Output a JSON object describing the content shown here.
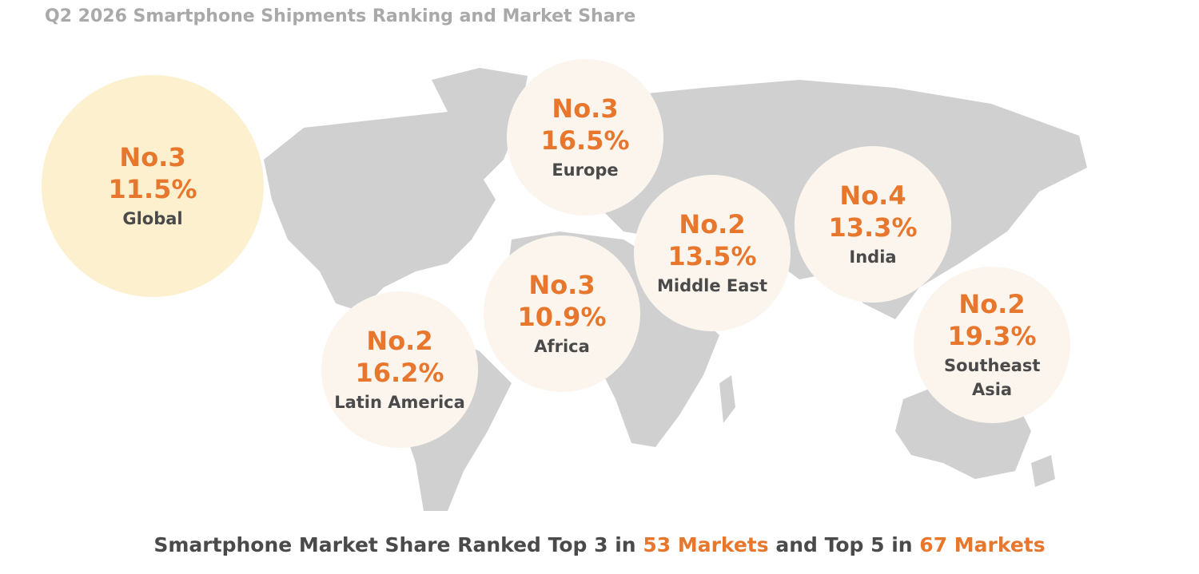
{
  "title": "Q2 2026 Smartphone Shipments Ranking and Market Share",
  "regions": [
    {
      "rank": "No.3",
      "share": "11.5%",
      "name": "Global"
    },
    {
      "rank": "No.3",
      "share": "16.5%",
      "name": "Europe"
    },
    {
      "rank": "No.2",
      "share": "13.5%",
      "name": "Middle East"
    },
    {
      "rank": "No.4",
      "share": "13.3%",
      "name": "India"
    },
    {
      "rank": "No.3",
      "share": "10.9%",
      "name": "Africa"
    },
    {
      "rank": "No.2",
      "share": "16.2%",
      "name": "Latin America"
    },
    {
      "rank": "No.2",
      "share": "19.3%",
      "name": "Southeast Asia"
    }
  ],
  "footer": {
    "text1": "Smartphone Market Share Ranked Top 3 in ",
    "highlight1": "53 Markets",
    "text2": " and Top 5 in ",
    "highlight2": "67 Markets"
  }
}
